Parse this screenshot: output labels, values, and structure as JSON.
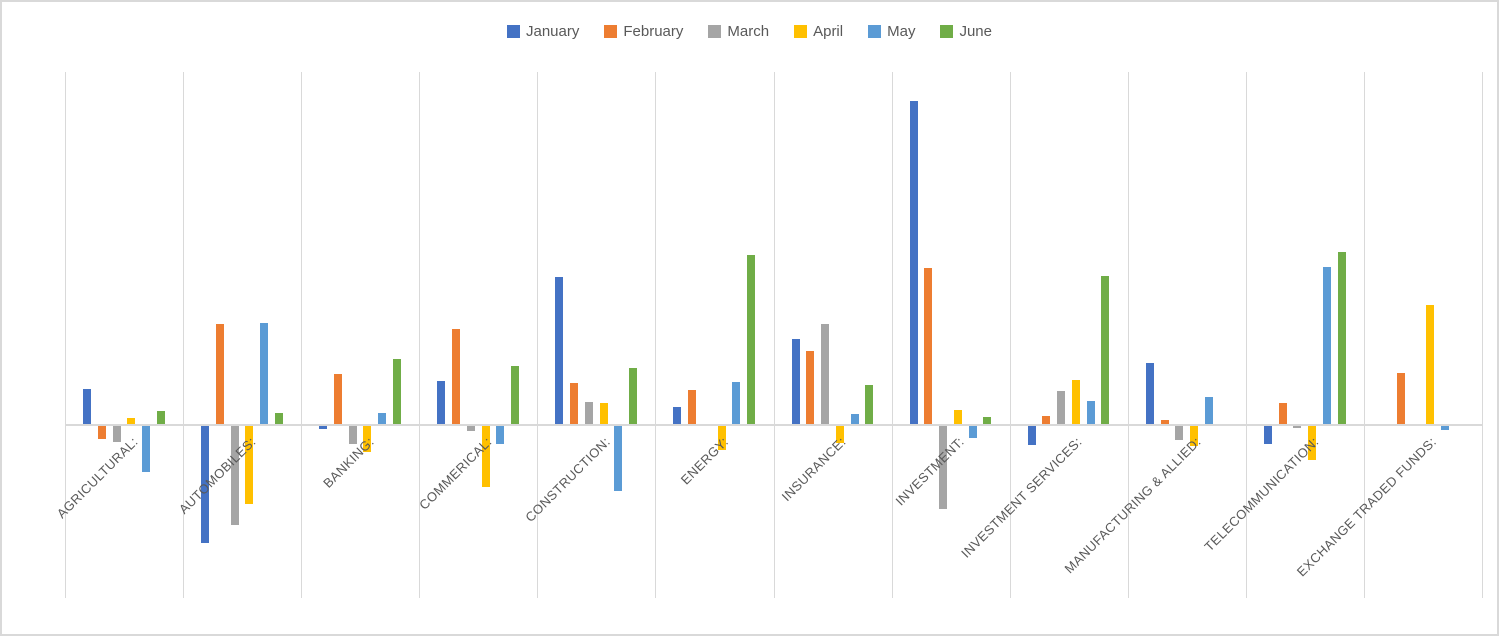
{
  "chart_data": {
    "type": "bar",
    "title": "",
    "xlabel": "",
    "ylabel": "",
    "legend_position": "top",
    "gridlines": "vertical category separators only",
    "axis_color": "#D9D9D9",
    "label_color": "#595959",
    "ylim": [
      -17.3,
      35.3
    ],
    "categories": [
      "AGRICULTURAL:",
      "AUTOMOBILES:",
      "BANKING:",
      "COMMERICAL:",
      "CONSTRUCTION:",
      "ENERGY:",
      "INSURANCE:",
      "INVESTMENT:",
      "INVESTMENT SERVICES:",
      "MANUFACTURING & ALLIED:",
      "TELECOMMUNICATION:",
      "EXCHANGE TRADED FUNDS:"
    ],
    "series": [
      {
        "name": "January",
        "color": "#4472C4",
        "values": [
          3.5,
          -11.7,
          -0.3,
          4.3,
          14.7,
          1.7,
          8.5,
          32.3,
          -1.9,
          6.1,
          -1.8,
          0
        ]
      },
      {
        "name": "February",
        "color": "#ED7D31",
        "values": [
          -1.3,
          10.0,
          5.0,
          9.5,
          4.1,
          3.4,
          7.3,
          15.6,
          0.8,
          0.4,
          2.1,
          5.1
        ]
      },
      {
        "name": "March",
        "color": "#A5A5A5",
        "values": [
          -1.6,
          -9.9,
          -1.8,
          -0.5,
          2.2,
          0,
          10.0,
          -8.3,
          3.3,
          -1.4,
          -0.2,
          0
        ]
      },
      {
        "name": "April",
        "color": "#FFC000",
        "values": [
          0.6,
          -7.8,
          -2.6,
          -6.1,
          2.1,
          -2.4,
          -1.7,
          1.4,
          4.4,
          -2.0,
          -3.4,
          11.9
        ]
      },
      {
        "name": "May",
        "color": "#5B9BD5",
        "values": [
          -4.6,
          10.1,
          1.1,
          -1.8,
          -6.5,
          4.2,
          1.0,
          -1.2,
          2.3,
          2.7,
          15.7,
          -0.4
        ]
      },
      {
        "name": "June",
        "color": "#70AD47",
        "values": [
          1.3,
          1.1,
          6.5,
          5.8,
          5.6,
          16.9,
          3.9,
          0.7,
          14.8,
          0,
          17.2,
          0
        ]
      }
    ]
  }
}
